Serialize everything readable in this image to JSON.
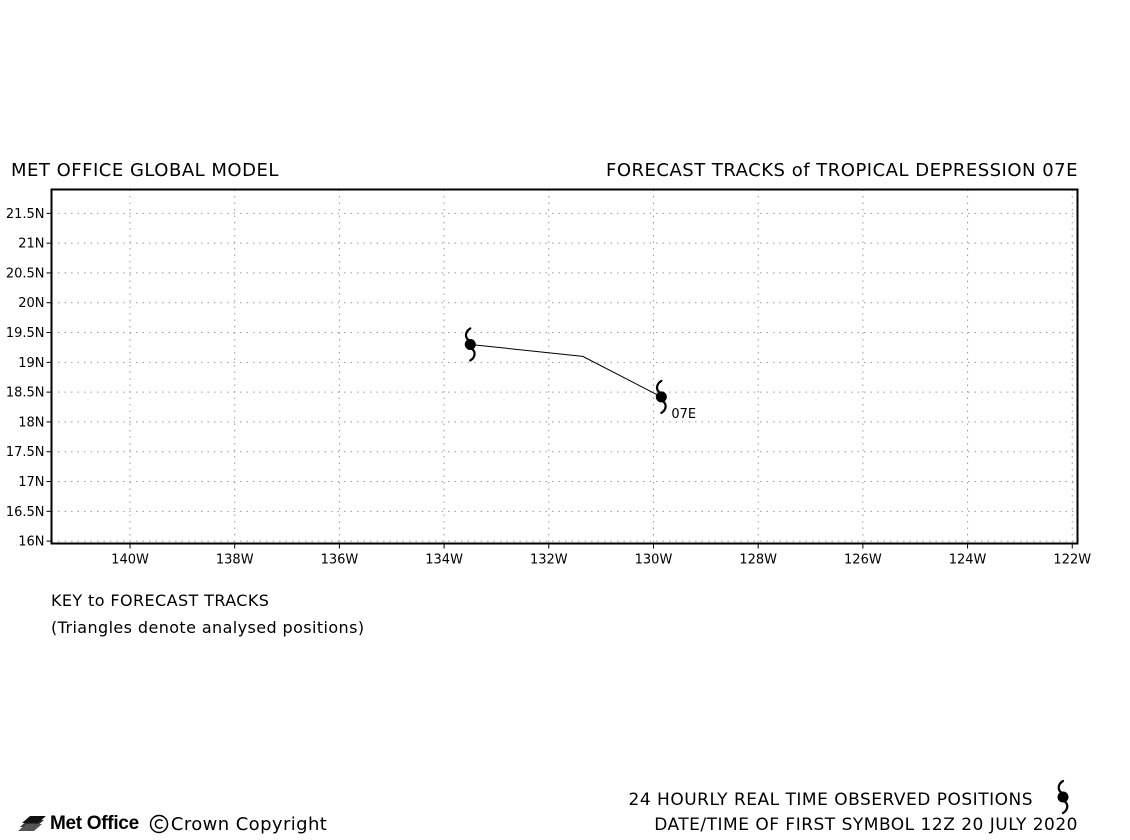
{
  "header": {
    "left": "MET OFFICE GLOBAL MODEL",
    "right": "FORECAST TRACKS of TROPICAL DEPRESSION 07E"
  },
  "map": {
    "lon_range": [
      -141.5,
      -121.9
    ],
    "lat_range": [
      15.96,
      21.9
    ],
    "lat_ticks": [
      {
        "value": 21.5,
        "label": "21.5N"
      },
      {
        "value": 21,
        "label": "21N"
      },
      {
        "value": 20.5,
        "label": "20.5N"
      },
      {
        "value": 20,
        "label": "20N"
      },
      {
        "value": 19.5,
        "label": "19.5N"
      },
      {
        "value": 19,
        "label": "19N"
      },
      {
        "value": 18.5,
        "label": "18.5N"
      },
      {
        "value": 18,
        "label": "18N"
      },
      {
        "value": 17.5,
        "label": "17.5N"
      },
      {
        "value": 17,
        "label": "17N"
      },
      {
        "value": 16.5,
        "label": "16.5N"
      },
      {
        "value": 16,
        "label": "16N"
      }
    ],
    "lon_ticks": [
      {
        "value": -140,
        "label": "140W"
      },
      {
        "value": -138,
        "label": "138W"
      },
      {
        "value": -136,
        "label": "136W"
      },
      {
        "value": -134,
        "label": "134W"
      },
      {
        "value": -132,
        "label": "132W"
      },
      {
        "value": -130,
        "label": "130W"
      },
      {
        "value": -128,
        "label": "128W"
      },
      {
        "value": -126,
        "label": "126W"
      },
      {
        "value": -124,
        "label": "124W"
      },
      {
        "value": -122,
        "label": "122W"
      }
    ],
    "grid": true,
    "track": {
      "name": "07E",
      "points": [
        {
          "lon": -129.85,
          "lat": 18.42
        },
        {
          "lon": -131.35,
          "lat": 19.1
        },
        {
          "lon": -133.5,
          "lat": 19.3
        }
      ],
      "observed_symbols": [
        {
          "lon": -129.85,
          "lat": 18.42
        },
        {
          "lon": -133.5,
          "lat": 19.3
        }
      ]
    }
  },
  "key": {
    "title": "KEY to FORECAST TRACKS",
    "note": "(Triangles denote analysed positions)"
  },
  "footer": {
    "observed": "24 HOURLY REAL TIME OBSERVED POSITIONS",
    "date": "DATE/TIME OF FIRST SYMBOL 12Z 20 JULY 2020",
    "logo": "Met Office",
    "copyright": "Crown Copyright"
  },
  "icons": {
    "storm": "tropical-cyclone-icon",
    "logo": "met-office-logo-icon",
    "copyright": "copyright-icon"
  }
}
